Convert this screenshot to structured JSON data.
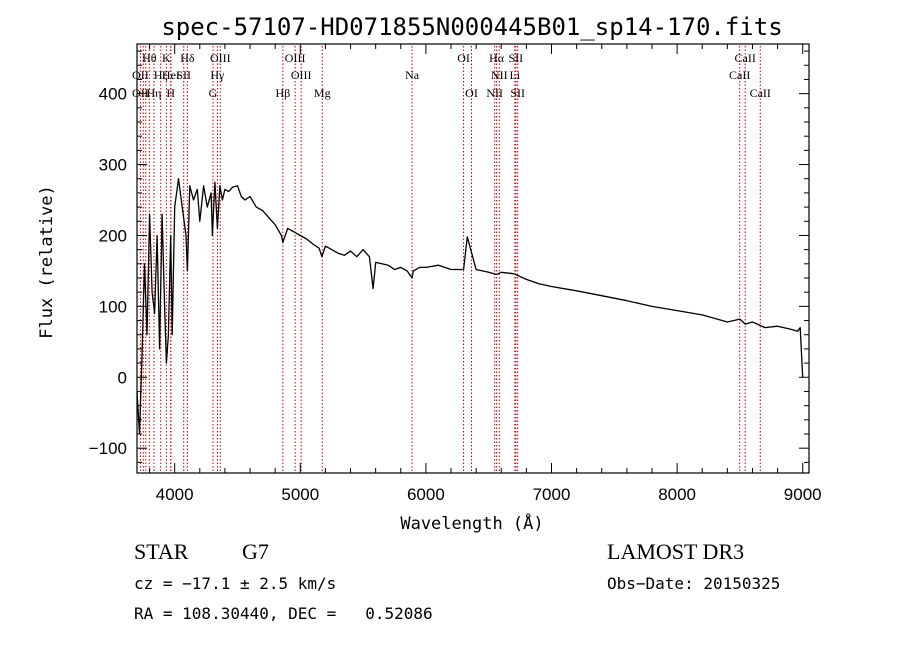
{
  "chart_data": {
    "type": "line",
    "title": "spec-57107-HD071855N000445B01_sp14-170.fits",
    "xlabel": "Wavelength (Å)",
    "ylabel": "Flux (relative)",
    "xlim": [
      3700,
      9050
    ],
    "ylim": [
      -135,
      470
    ],
    "xticks": [
      4000,
      5000,
      6000,
      7000,
      8000,
      9000
    ],
    "yticks": [
      -100,
      0,
      100,
      200,
      300,
      400
    ],
    "grid": false,
    "series": [
      {
        "name": "spectrum",
        "x": [
          3700,
          3720,
          3740,
          3760,
          3780,
          3800,
          3820,
          3840,
          3860,
          3880,
          3900,
          3920,
          3934,
          3950,
          3968,
          3980,
          4000,
          4030,
          4060,
          4090,
          4101,
          4120,
          4150,
          4180,
          4200,
          4230,
          4260,
          4290,
          4300,
          4320,
          4340,
          4360,
          4380,
          4400,
          4430,
          4460,
          4500,
          4530,
          4560,
          4600,
          4650,
          4700,
          4750,
          4800,
          4850,
          4861,
          4900,
          4950,
          5000,
          5050,
          5100,
          5150,
          5172,
          5200,
          5250,
          5300,
          5350,
          5400,
          5450,
          5500,
          5550,
          5580,
          5600,
          5650,
          5700,
          5750,
          5800,
          5850,
          5890,
          5900,
          5950,
          6000,
          6100,
          6200,
          6300,
          6330,
          6400,
          6500,
          6563,
          6600,
          6700,
          6800,
          6900,
          7000,
          7200,
          7400,
          7600,
          7800,
          8000,
          8200,
          8400,
          8500,
          8542,
          8600,
          8662,
          8700,
          8800,
          8900,
          8960,
          8980,
          9000
        ],
        "y": [
          -20,
          -80,
          30,
          160,
          60,
          230,
          120,
          90,
          200,
          40,
          230,
          100,
          20,
          60,
          200,
          60,
          240,
          280,
          240,
          200,
          150,
          270,
          250,
          265,
          220,
          270,
          240,
          260,
          200,
          275,
          210,
          270,
          250,
          265,
          262,
          268,
          270,
          255,
          250,
          255,
          240,
          235,
          225,
          215,
          200,
          190,
          210,
          205,
          200,
          195,
          188,
          182,
          170,
          185,
          180,
          175,
          172,
          178,
          170,
          180,
          170,
          125,
          162,
          160,
          158,
          152,
          155,
          150,
          140,
          150,
          155,
          155,
          158,
          152,
          152,
          198,
          152,
          148,
          145,
          148,
          146,
          138,
          132,
          128,
          122,
          115,
          108,
          100,
          94,
          88,
          78,
          82,
          75,
          78,
          73,
          70,
          72,
          68,
          65,
          70,
          0
        ]
      }
    ],
    "spectral_lines": {
      "row1": [
        {
          "label": "Hθ",
          "x": 3798
        },
        {
          "label": "K",
          "x": 3934
        },
        {
          "label": "Hδ",
          "x": 4101
        },
        {
          "label": "OIII",
          "x": 4363
        },
        {
          "label": "OIII",
          "x": 4959
        },
        {
          "label": "OI",
          "x": 6300
        },
        {
          "label": "Hα",
          "x": 6563
        },
        {
          "label": "SII",
          "x": 6716
        },
        {
          "label": "CaII",
          "x": 8542
        }
      ],
      "row2": [
        {
          "label": "OII",
          "x": 3727
        },
        {
          "label": "Hζ",
          "x": 3889
        },
        {
          "label": "HeI",
          "x": 3970
        },
        {
          "label": "SII",
          "x": 4072
        },
        {
          "label": "Hγ",
          "x": 4340
        },
        {
          "label": "OIII",
          "x": 5007
        },
        {
          "label": "Na",
          "x": 5890
        },
        {
          "label": "NII",
          "x": 6584
        },
        {
          "label": "Li",
          "x": 6708
        },
        {
          "label": "CaII",
          "x": 8498
        }
      ],
      "row3": [
        {
          "label": "OII",
          "x": 3727
        },
        {
          "label": "Hη",
          "x": 3835
        },
        {
          "label": "H",
          "x": 3968
        },
        {
          "label": "G",
          "x": 4305
        },
        {
          "label": "Hβ",
          "x": 4861
        },
        {
          "label": "Mg",
          "x": 5175
        },
        {
          "label": "OI",
          "x": 6363
        },
        {
          "label": "NII",
          "x": 6548
        },
        {
          "label": "SII",
          "x": 6731
        },
        {
          "label": "CaII",
          "x": 8662
        }
      ],
      "line_positions": [
        3727,
        3750,
        3770,
        3798,
        3835,
        3889,
        3934,
        3968,
        3970,
        4072,
        4101,
        4305,
        4340,
        4363,
        4861,
        4959,
        5007,
        5175,
        5890,
        6300,
        6363,
        6548,
        6563,
        6584,
        6708,
        6716,
        6731,
        8498,
        8542,
        8662
      ]
    }
  },
  "info": {
    "object_type": "STAR",
    "subclass": "G7",
    "survey": "LAMOST DR3",
    "cz": "cz = −17.1 ± 2.5 km/s",
    "obs_date": "Obs−Date: 20150325",
    "coords": "RA = 108.30440, DEC =   0.52086"
  }
}
